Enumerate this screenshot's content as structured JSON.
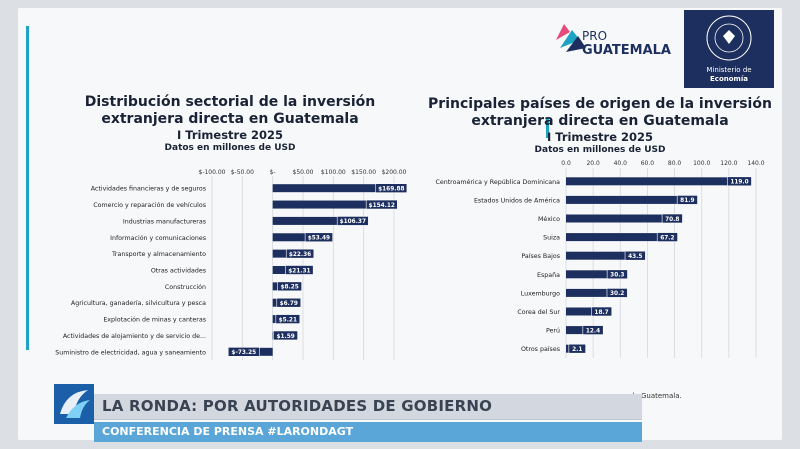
{
  "brand": {
    "pro_prefix": "PRO",
    "pro_name": "GUATEMALA",
    "ministry_seal_text": "GOBIERNO DE LA REPÚBLICA GUATEMALA",
    "ministry_label": "Ministerio de",
    "ministry_name": "Economía"
  },
  "colors": {
    "bar": "#1d2f5e",
    "accent": "#1fa3c4",
    "label_bg": "#1d2f5e"
  },
  "footnote": "de Guatemala.",
  "lower_third": {
    "title": "LA RONDA: POR AUTORIDADES DE GOBIERNO",
    "subtitle": "CONFERENCIA DE PRENSA #LARONDAGT",
    "logo_icon": "broadcaster-logo-icon"
  },
  "chart_data": [
    {
      "type": "bar",
      "orientation": "horizontal",
      "title": "Distribución sectorial de la inversión extranjera directa en Guatemala",
      "title_line1": "Distribución sectorial de la inversión",
      "title_line2": "extranjera directa en Guatemala",
      "subtitle": "I Trimestre 2025",
      "units": "Datos en millones de USD",
      "xlim": [
        -100,
        200
      ],
      "ticks": [
        -100,
        -50,
        0,
        50,
        100,
        150,
        200
      ],
      "tick_labels": [
        "$-100.00",
        "$-50.00",
        "$-",
        "$50.00",
        "$100.00",
        "$150.00",
        "$200.00"
      ],
      "grid": true,
      "categories": [
        "Actividades financieras y de seguros",
        "Comercio y reparación de vehículos",
        "Industrias manufactureras",
        "Información y comunicaciones",
        "Transporte y almacenamiento",
        "Otras actividades",
        "Construcción",
        "Agricultura, ganadería, silvicultura y pesca",
        "Explotación de minas y canteras",
        "Actividades de alojamiento y de servicio de...",
        "Suministro de electricidad, agua y saneamiento"
      ],
      "values": [
        169.88,
        154.12,
        106.37,
        53.49,
        22.36,
        21.31,
        8.25,
        6.79,
        5.21,
        1.59,
        -73.25
      ],
      "value_labels": [
        "$169.88",
        "$154.12",
        "$106.37",
        "$53.49",
        "$22.36",
        "$21.31",
        "$8.25",
        "$6.79",
        "$5.21",
        "$1.59",
        "$-73.25"
      ]
    },
    {
      "type": "bar",
      "orientation": "horizontal",
      "title": "Principales países de origen de la inversión extranjera directa en Guatemala",
      "title_line1": "Principales países de origen de la inversión",
      "title_line2": "extranjera directa en Guatemala",
      "subtitle": "I Trimestre 2025",
      "units": "Datos en millones de USD",
      "xlim": [
        0,
        140
      ],
      "ticks": [
        0,
        20,
        40,
        60,
        80,
        100,
        120,
        140
      ],
      "tick_labels": [
        "0.0",
        "20.0",
        "40.0",
        "60.0",
        "80.0",
        "100.0",
        "120.0",
        "140.0"
      ],
      "grid": true,
      "categories": [
        "Centroamérica y República Dominicana",
        "Estados Unidos de América",
        "México",
        "Suiza",
        "Países Bajos",
        "España",
        "Luxemburgo",
        "Corea del Sur",
        "Perú",
        "Otros países"
      ],
      "values": [
        119.0,
        81.9,
        70.8,
        67.2,
        43.5,
        30.3,
        30.2,
        18.7,
        12.4,
        2.1
      ],
      "value_labels": [
        "119.0",
        "81.9",
        "70.8",
        "67.2",
        "43.5",
        "30.3",
        "30.2",
        "18.7",
        "12.4",
        "2.1"
      ]
    }
  ]
}
